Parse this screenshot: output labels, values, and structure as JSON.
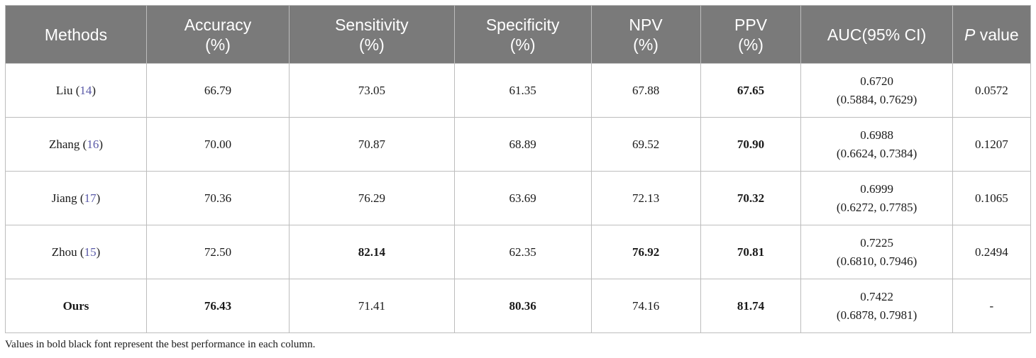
{
  "table": {
    "headers": [
      {
        "line1": "Methods",
        "line2": ""
      },
      {
        "line1": "Accuracy",
        "line2": "(%)"
      },
      {
        "line1": "Sensitivity",
        "line2": "(%)"
      },
      {
        "line1": "Specificity",
        "line2": "(%)"
      },
      {
        "line1": "NPV",
        "line2": "(%)"
      },
      {
        "line1": "PPV",
        "line2": "(%)"
      },
      {
        "line1": "AUC(95% CI)",
        "line2": ""
      },
      {
        "italic": "P",
        "rest": " value"
      }
    ],
    "rows": [
      {
        "method_name": "Liu",
        "citation": "14",
        "accuracy": "66.79",
        "sensitivity": "73.05",
        "specificity": "61.35",
        "npv": "67.88",
        "ppv": "67.65",
        "auc": "0.6720",
        "auc_ci": "(0.5884, 0.7629)",
        "p_value": "0.0572"
      },
      {
        "method_name": "Zhang",
        "citation": "16",
        "accuracy": "70.00",
        "sensitivity": "70.87",
        "specificity": "68.89",
        "npv": "69.52",
        "ppv": "70.90",
        "auc": "0.6988",
        "auc_ci": "(0.6624, 0.7384)",
        "p_value": "0.1207"
      },
      {
        "method_name": "Jiang",
        "citation": "17",
        "accuracy": "70.36",
        "sensitivity": "76.29",
        "specificity": "63.69",
        "npv": "72.13",
        "ppv": "70.32",
        "auc": "0.6999",
        "auc_ci": "(0.6272, 0.7785)",
        "p_value": "0.1065"
      },
      {
        "method_name": "Zhou",
        "citation": "15",
        "accuracy": "72.50",
        "sensitivity": "82.14",
        "specificity": "62.35",
        "npv": "76.92",
        "ppv": "70.81",
        "auc": "0.7225",
        "auc_ci": "(0.6810, 0.7946)",
        "p_value": "0.2494"
      },
      {
        "method_name": "Ours",
        "citation": "",
        "accuracy": "76.43",
        "sensitivity": "71.41",
        "specificity": "80.36",
        "npv": "74.16",
        "ppv": "81.74",
        "auc": "0.7422",
        "auc_ci": "(0.6878, 0.7981)",
        "p_value": "-"
      }
    ]
  },
  "footnote": "Values in bold black font represent the best performance in each column.",
  "colors": {
    "header_background": "#7a7a7a",
    "header_text": "#ffffff",
    "border": "#bdbdbd",
    "citation_link": "#5a5aa8"
  }
}
